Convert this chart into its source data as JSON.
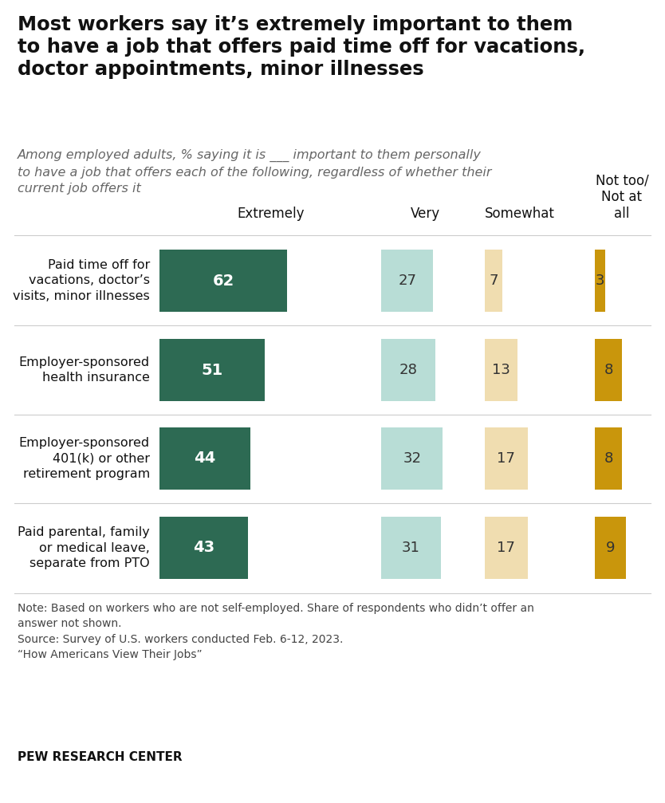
{
  "title": "Most workers say it’s extremely important to them\nto have a job that offers paid time off for vacations,\ndoctor appointments, minor illnesses",
  "subtitle": "Among employed adults, % saying it is ___ important to them personally\nto have a job that offers each of the following, regardless of whether their\ncurrent job offers it",
  "categories": [
    "Paid time off for\nvacations, doctor’s\nvisits, minor illnesses",
    "Employer-sponsored\nhealth insurance",
    "Employer-sponsored\n401(k) or other\nretirement program",
    "Paid parental, family\nor medical leave,\nseparate from PTO"
  ],
  "col_labels": [
    "Extremely",
    "Very",
    "Somewhat",
    "Not too/\nNot at\nall"
  ],
  "data": [
    [
      62,
      27,
      7,
      3
    ],
    [
      51,
      28,
      13,
      8
    ],
    [
      44,
      32,
      17,
      8
    ],
    [
      43,
      31,
      17,
      9
    ]
  ],
  "colors": [
    "#2d6a53",
    "#b8ddd6",
    "#f0ddb0",
    "#c9960c"
  ],
  "bar_text_colors": [
    "#ffffff",
    "#333333",
    "#333333",
    "#333333"
  ],
  "note": "Note: Based on workers who are not self-employed. Share of respondents who didn’t offer an\nanswer not shown.\nSource: Survey of U.S. workers conducted Feb. 6-12, 2023.\n“How Americans View Their Jobs”",
  "footer": "PEW RESEARCH CENTER",
  "bg_color": "#ffffff"
}
